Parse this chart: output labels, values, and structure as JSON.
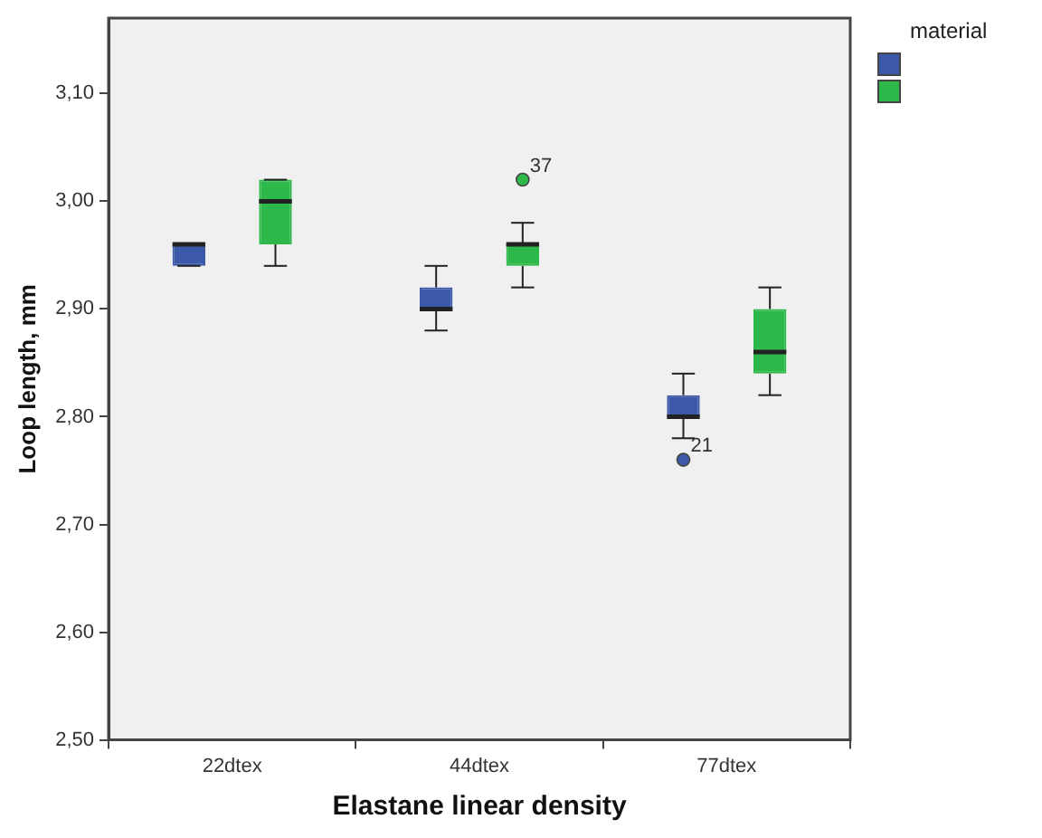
{
  "chart_data": {
    "type": "box",
    "xlabel": "Elastane linear density",
    "ylabel": "Loop length, mm",
    "legend_title": "material",
    "categories": [
      "22dtex",
      "44dtex",
      "77dtex"
    ],
    "ylim": [
      2.5,
      3.17
    ],
    "yticks": [
      {
        "value": 2.5,
        "label": "2,50"
      },
      {
        "value": 2.6,
        "label": "2,60"
      },
      {
        "value": 2.7,
        "label": "2,70"
      },
      {
        "value": 2.8,
        "label": "2,80"
      },
      {
        "value": 2.9,
        "label": "2,90"
      },
      {
        "value": 3.0,
        "label": "3,00"
      },
      {
        "value": 3.1,
        "label": "3,10"
      }
    ],
    "grid": false,
    "series": [
      {
        "color": "#3c58a8",
        "boxes": [
          {
            "low": 2.94,
            "q1": 2.94,
            "median": 2.96,
            "q3": 2.96,
            "high": 2.96
          },
          {
            "low": 2.88,
            "q1": 2.9,
            "median": 2.9,
            "q3": 2.92,
            "high": 2.94
          },
          {
            "low": 2.78,
            "q1": 2.8,
            "median": 2.8,
            "q3": 2.82,
            "high": 2.84,
            "outliers": [
              2.76
            ]
          }
        ]
      },
      {
        "color": "#2db84a",
        "boxes": [
          {
            "low": 2.94,
            "q1": 2.96,
            "median": 3.0,
            "q3": 3.02,
            "high": 3.02
          },
          {
            "low": 2.92,
            "q1": 2.94,
            "median": 2.96,
            "q3": 2.96,
            "high": 2.98,
            "outliers": [
              3.02
            ]
          },
          {
            "low": 2.82,
            "q1": 2.84,
            "median": 2.86,
            "q3": 2.9,
            "high": 2.92
          }
        ]
      }
    ],
    "annotations": [
      "21",
      "37"
    ]
  }
}
